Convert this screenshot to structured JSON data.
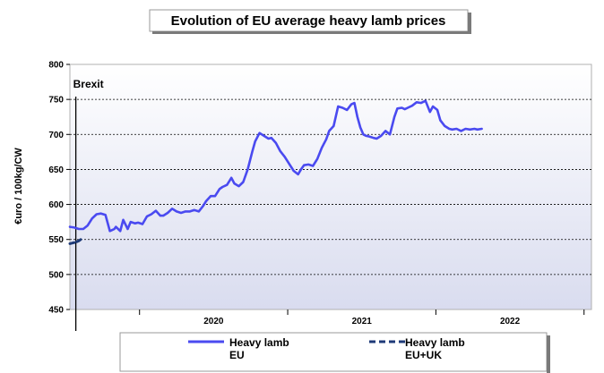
{
  "chart_data": {
    "type": "line",
    "title": "Evolution of EU average heavy lamb prices",
    "ylabel": "€uro / 100kg/CW",
    "xlabel": "",
    "ylim": [
      450,
      800
    ],
    "yticks": [
      "450",
      "500",
      "550",
      "600",
      "650",
      "700",
      "750",
      "800"
    ],
    "grid": true,
    "legend_position": "bottom",
    "x_unit": "year (decimal)",
    "xlim": [
      2019.53,
      2023.05
    ],
    "year_labels": [
      {
        "label": "2020",
        "x": 2020.5
      },
      {
        "label": "2021",
        "x": 2021.5
      },
      {
        "label": "2022",
        "x": 2022.5
      }
    ],
    "year_boundaries": [
      2020,
      2021,
      2022,
      2023
    ],
    "annotation": {
      "label": "Brexit",
      "x": 2019.57
    },
    "series": [
      {
        "name": "Heavy lamb EU",
        "legend_lines": [
          "Heavy lamb",
          "EU"
        ],
        "color": "#4a4af0",
        "style": "solid",
        "x": [
          2019.53,
          2019.56,
          2019.59,
          2019.62,
          2019.65,
          2019.68,
          2019.71,
          2019.74,
          2019.77,
          2019.8,
          2019.83,
          2019.84,
          2019.87,
          2019.89,
          2019.92,
          2019.94,
          2019.97,
          2019.99,
          2020.02,
          2020.05,
          2020.08,
          2020.11,
          2020.14,
          2020.16,
          2020.19,
          2020.22,
          2020.25,
          2020.28,
          2020.31,
          2020.34,
          2020.37,
          2020.4,
          2020.43,
          2020.45,
          2020.48,
          2020.51,
          2020.54,
          2020.56,
          2020.59,
          2020.62,
          2020.64,
          2020.67,
          2020.7,
          2020.73,
          2020.76,
          2020.78,
          2020.81,
          2020.84,
          2020.87,
          2020.89,
          2020.92,
          2020.95,
          2020.98,
          2021.01,
          2021.04,
          2021.07,
          2021.09,
          2021.11,
          2021.14,
          2021.17,
          2021.2,
          2021.23,
          2021.26,
          2021.28,
          2021.31,
          2021.34,
          2021.37,
          2021.4,
          2021.43,
          2021.45,
          2021.47,
          2021.49,
          2021.51,
          2021.53,
          2021.55,
          2021.58,
          2021.6,
          2021.63,
          2021.66,
          2021.69,
          2021.72,
          2021.74,
          2021.77,
          2021.79,
          2021.81,
          2021.84,
          2021.87,
          2021.9,
          2021.93,
          2021.96,
          2021.98,
          2022.01,
          2022.03,
          2022.06,
          2022.09,
          2022.11,
          2022.14,
          2022.17,
          2022.2,
          2022.23,
          2022.26,
          2022.28,
          2022.31
        ],
        "y": [
          568,
          567,
          565,
          565,
          570,
          580,
          586,
          587,
          585,
          562,
          565,
          568,
          562,
          578,
          565,
          575,
          573,
          574,
          572,
          583,
          586,
          591,
          584,
          584,
          588,
          594,
          590,
          588,
          590,
          590,
          592,
          590,
          598,
          605,
          612,
          612,
          622,
          625,
          628,
          638,
          630,
          626,
          632,
          650,
          675,
          690,
          702,
          698,
          694,
          695,
          688,
          676,
          668,
          658,
          648,
          643,
          650,
          656,
          657,
          655,
          665,
          681,
          693,
          705,
          712,
          740,
          738,
          735,
          743,
          745,
          725,
          710,
          700,
          698,
          697,
          695,
          694,
          698,
          705,
          700,
          725,
          737,
          738,
          736,
          738,
          741,
          746,
          745,
          748,
          732,
          740,
          735,
          720,
          712,
          708,
          707,
          708,
          705,
          708,
          707,
          708,
          707,
          708
        ]
      },
      {
        "name": "Heavy lamb EU+UK",
        "legend_lines": [
          "Heavy lamb",
          "EU+UK"
        ],
        "color": "#1e3a78",
        "style": "dashed",
        "x": [
          2019.53,
          2019.55,
          2019.57,
          2019.59,
          2019.61
        ],
        "y": [
          544,
          545,
          546,
          548,
          551
        ]
      }
    ]
  }
}
